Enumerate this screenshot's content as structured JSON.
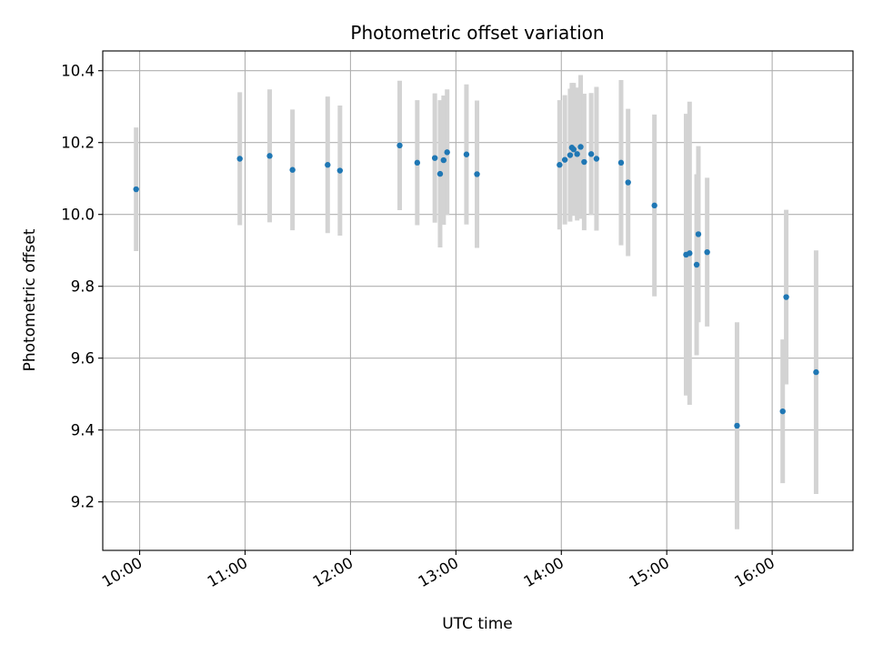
{
  "chart_data": {
    "type": "scatter",
    "title": "Photometric offset variation",
    "xlabel": "UTC time",
    "ylabel": "Photometric offset",
    "xlim": [
      "09:39",
      "16:46"
    ],
    "ylim": [
      9.065,
      10.455
    ],
    "grid": true,
    "x_ticks": [
      "10:00",
      "11:00",
      "12:00",
      "13:00",
      "14:00",
      "15:00",
      "16:00"
    ],
    "y_ticks": [
      9.2,
      9.4,
      9.6,
      9.8,
      10.0,
      10.2,
      10.4
    ],
    "y_tick_labels": [
      "9.2",
      "9.4",
      "9.6",
      "9.8",
      "10.0",
      "10.2",
      "10.4"
    ],
    "colors": {
      "point": "#1f77b4",
      "errorbar": "#d3d3d3"
    },
    "series": [
      {
        "points": [
          {
            "x": "09:58",
            "y": 10.07,
            "err": 0.172
          },
          {
            "x": "10:57",
            "y": 10.155,
            "err": 0.185
          },
          {
            "x": "11:14",
            "y": 10.163,
            "err": 0.185
          },
          {
            "x": "11:27",
            "y": 10.124,
            "err": 0.168
          },
          {
            "x": "11:47",
            "y": 10.138,
            "err": 0.19
          },
          {
            "x": "11:54",
            "y": 10.122,
            "err": 0.181
          },
          {
            "x": "12:28",
            "y": 10.192,
            "err": 0.18
          },
          {
            "x": "12:38",
            "y": 10.144,
            "err": 0.174
          },
          {
            "x": "12:48",
            "y": 10.157,
            "err": 0.18
          },
          {
            "x": "12:51",
            "y": 10.113,
            "err": 0.205
          },
          {
            "x": "12:53",
            "y": 10.151,
            "err": 0.18
          },
          {
            "x": "12:55",
            "y": 10.173,
            "err": 0.175
          },
          {
            "x": "13:06",
            "y": 10.167,
            "err": 0.195
          },
          {
            "x": "13:12",
            "y": 10.112,
            "err": 0.205
          },
          {
            "x": "13:59",
            "y": 10.138,
            "err": 0.18
          },
          {
            "x": "14:02",
            "y": 10.152,
            "err": 0.18
          },
          {
            "x": "14:05",
            "y": 10.165,
            "err": 0.185
          },
          {
            "x": "14:06",
            "y": 10.186,
            "err": 0.18
          },
          {
            "x": "14:07",
            "y": 10.181,
            "err": 0.185
          },
          {
            "x": "14:09",
            "y": 10.168,
            "err": 0.185
          },
          {
            "x": "14:11",
            "y": 10.188,
            "err": 0.2
          },
          {
            "x": "14:13",
            "y": 10.146,
            "err": 0.19
          },
          {
            "x": "14:17",
            "y": 10.168,
            "err": 0.17
          },
          {
            "x": "14:20",
            "y": 10.155,
            "err": 0.2
          },
          {
            "x": "14:34",
            "y": 10.144,
            "err": 0.23
          },
          {
            "x": "14:38",
            "y": 10.089,
            "err": 0.205
          },
          {
            "x": "14:53",
            "y": 10.025,
            "err": 0.253
          },
          {
            "x": "15:11",
            "y": 9.888,
            "err": 0.392
          },
          {
            "x": "15:13",
            "y": 9.892,
            "err": 0.422
          },
          {
            "x": "15:17",
            "y": 9.86,
            "err": 0.252
          },
          {
            "x": "15:18",
            "y": 9.945,
            "err": 0.245
          },
          {
            "x": "15:23",
            "y": 9.895,
            "err": 0.207
          },
          {
            "x": "15:40",
            "y": 9.412,
            "err": 0.288
          },
          {
            "x": "16:06",
            "y": 9.452,
            "err": 0.2
          },
          {
            "x": "16:08",
            "y": 9.77,
            "err": 0.243
          },
          {
            "x": "16:25",
            "y": 9.561,
            "err": 0.339
          }
        ]
      }
    ]
  }
}
